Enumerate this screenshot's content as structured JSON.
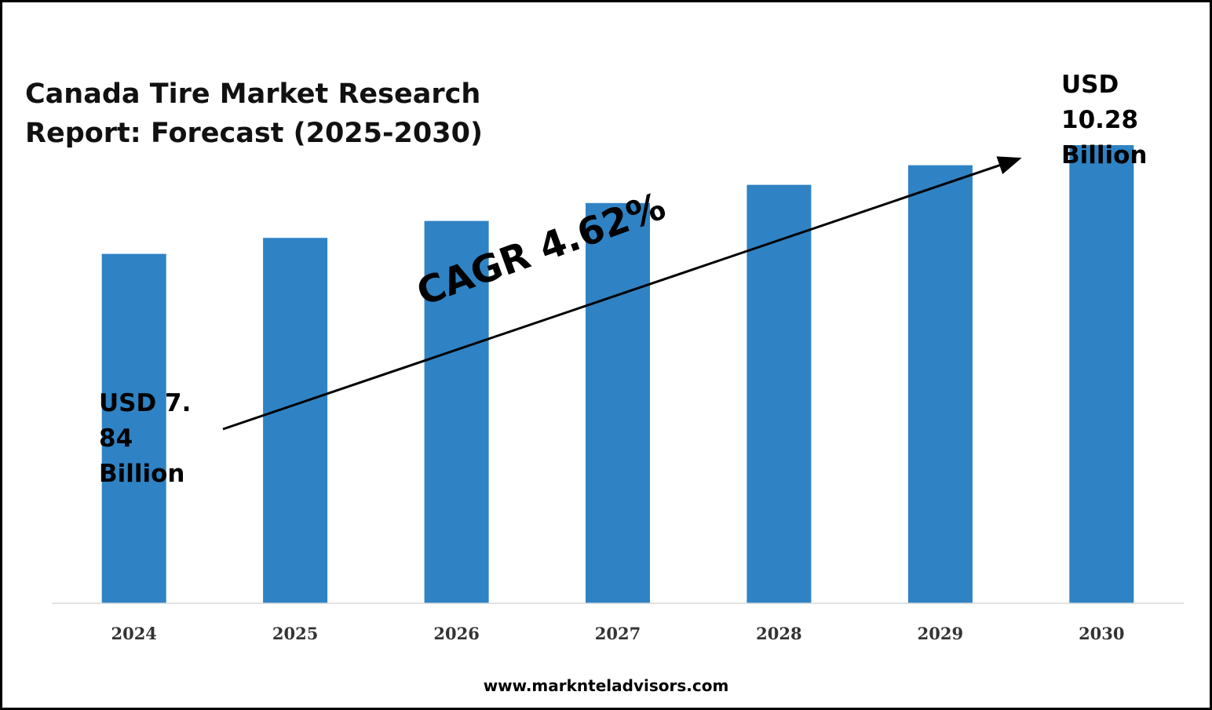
{
  "title": "Canada Tire Market Research Report: Forecast (2025-2030)",
  "website": "www.marknteladvisors.com",
  "annotations": {
    "start_value": "USD 7.\n84\nBillion",
    "end_value": "USD\n10.28\nBillion",
    "cagr": "CAGR 4.62%"
  },
  "colors": {
    "bar": "#2F83C4",
    "axis": "#D9D9D9",
    "text": "#000000"
  },
  "chart_data": {
    "type": "bar",
    "title": "Canada Tire Market Research Report: Forecast (2025-2030)",
    "categories": [
      "2024",
      "2025",
      "2026",
      "2027",
      "2028",
      "2029",
      "2030"
    ],
    "values": [
      7.84,
      8.2,
      8.58,
      8.98,
      9.39,
      9.83,
      10.28
    ],
    "xlabel": "",
    "ylabel": "",
    "ylim": [
      0,
      11.6
    ],
    "grid": false,
    "legend": "none"
  }
}
